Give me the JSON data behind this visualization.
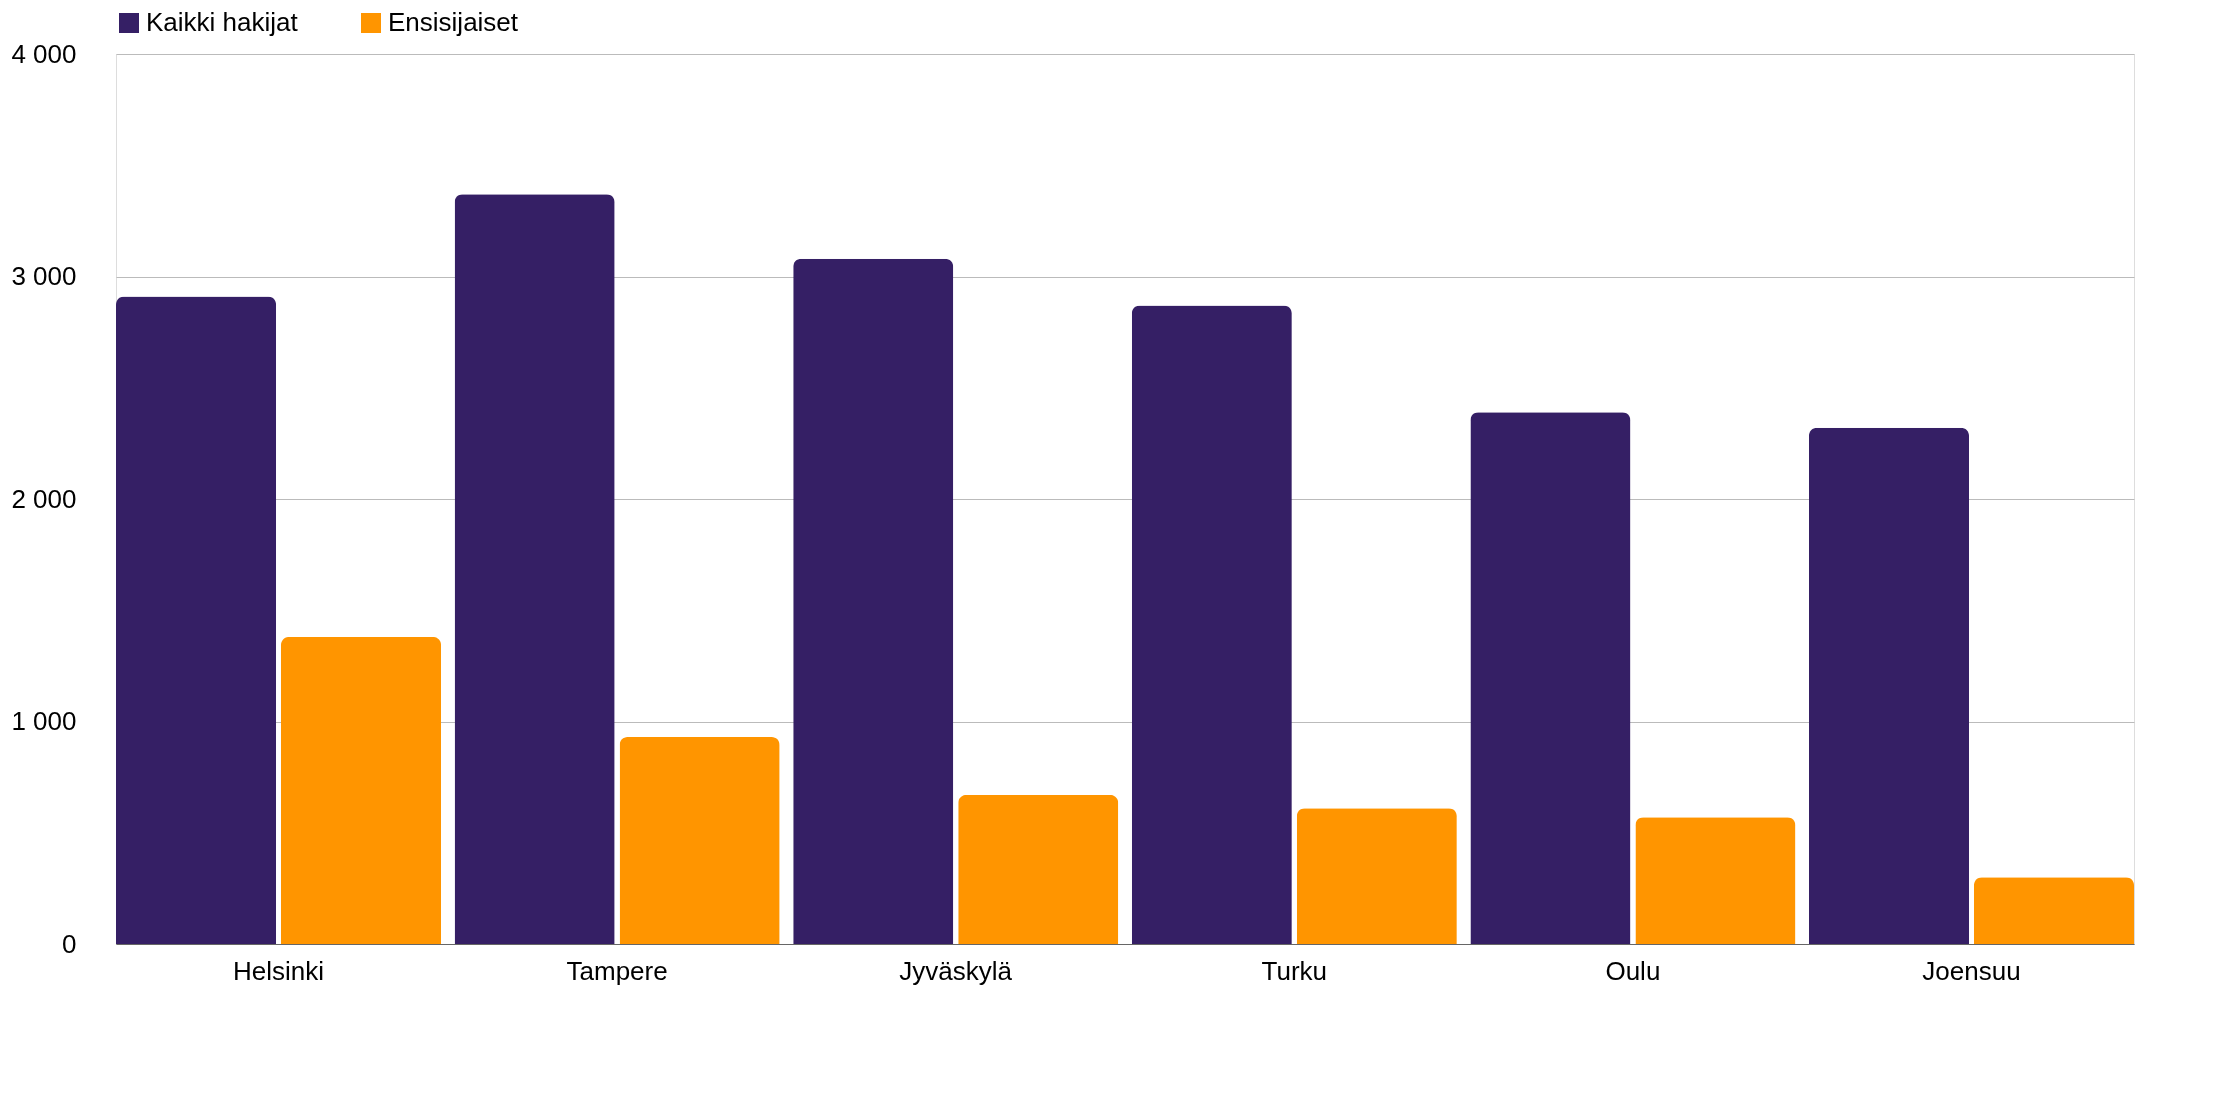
{
  "chart_data": {
    "type": "bar",
    "categories": [
      "Helsinki",
      "Tampere",
      "Jyväskylä",
      "Turku",
      "Oulu",
      "Joensuu"
    ],
    "series": [
      {
        "name": "Kaikki hakijat",
        "color": "#351f65",
        "values": [
          2910,
          3370,
          3080,
          2870,
          2390,
          2320
        ]
      },
      {
        "name": "Ensisijaiset",
        "color": "#ff9500",
        "values": [
          1380,
          930,
          670,
          610,
          570,
          300
        ]
      }
    ],
    "ylim": [
      0,
      4000
    ],
    "yticks": [
      {
        "value": 0,
        "label": "0"
      },
      {
        "value": 1000,
        "label": "1 000"
      },
      {
        "value": 2000,
        "label": "2 000"
      },
      {
        "value": 3000,
        "label": "3 000"
      },
      {
        "value": 4000,
        "label": "4 000"
      }
    ],
    "grid": "y",
    "legend": "top"
  }
}
